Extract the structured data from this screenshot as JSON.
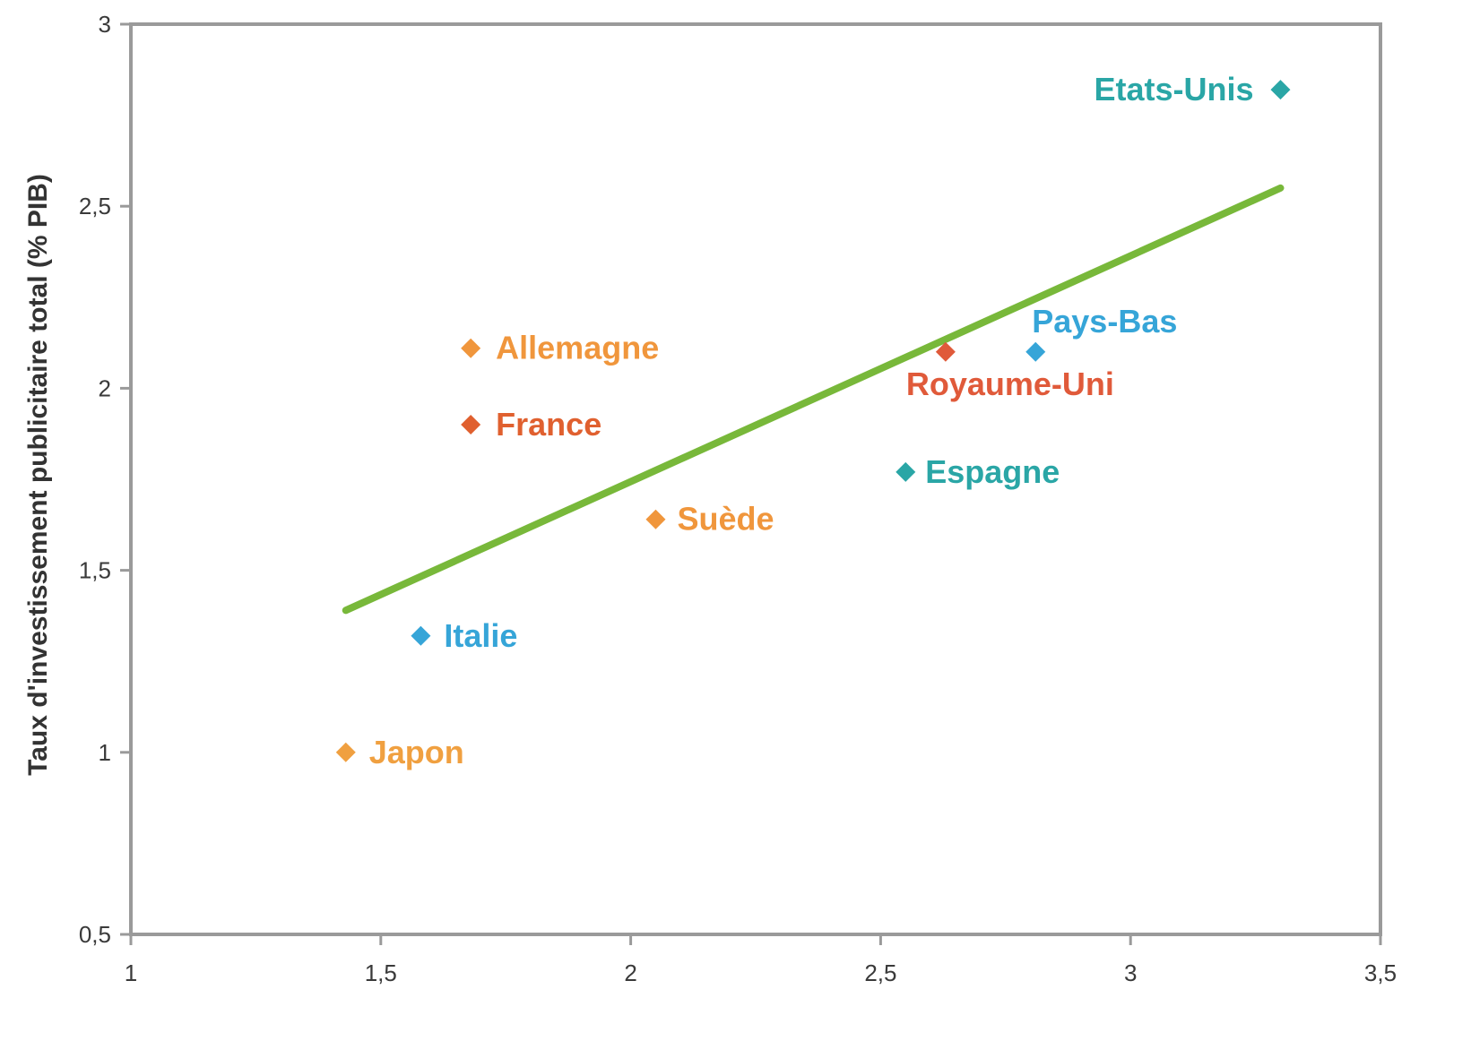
{
  "chart_data": {
    "type": "scatter",
    "title": "",
    "xlabel": "",
    "ylabel": "Taux d'investissement publicitaire total (% PIB)",
    "xlim": [
      1,
      3.5
    ],
    "ylim": [
      0.5,
      3
    ],
    "x_ticks": [
      1,
      1.5,
      2,
      2.5,
      3,
      3.5
    ],
    "x_tick_labels": [
      "1",
      "1,5",
      "2",
      "2,5",
      "3",
      "3,5"
    ],
    "y_ticks": [
      0.5,
      1,
      1.5,
      2,
      2.5,
      3
    ],
    "y_tick_labels": [
      "0,5",
      "1",
      "1,5",
      "2",
      "2,5",
      "3"
    ],
    "grid": false,
    "points": [
      {
        "label": "Etats-Unis",
        "x": 3.3,
        "y": 2.82,
        "color": "#2aa6a6"
      },
      {
        "label": "Pays-Bas",
        "x": 2.81,
        "y": 2.1,
        "color": "#36a5d8"
      },
      {
        "label": "Royaume-Uni",
        "x": 2.63,
        "y": 2.1,
        "color": "#e05a3a"
      },
      {
        "label": "Espagne",
        "x": 2.55,
        "y": 1.77,
        "color": "#2aa6a6"
      },
      {
        "label": "Allemagne",
        "x": 1.68,
        "y": 2.11,
        "color": "#f0963c"
      },
      {
        "label": "France",
        "x": 1.68,
        "y": 1.9,
        "color": "#e0602f"
      },
      {
        "label": "Suède",
        "x": 2.05,
        "y": 1.64,
        "color": "#f0963c"
      },
      {
        "label": "Italie",
        "x": 1.58,
        "y": 1.32,
        "color": "#36a5d8"
      },
      {
        "label": "Japon",
        "x": 1.43,
        "y": 1.0,
        "color": "#f0a040"
      }
    ],
    "trendline": {
      "x": [
        1.43,
        3.3
      ],
      "y": [
        1.39,
        2.55
      ],
      "color": "#78b83a"
    }
  }
}
